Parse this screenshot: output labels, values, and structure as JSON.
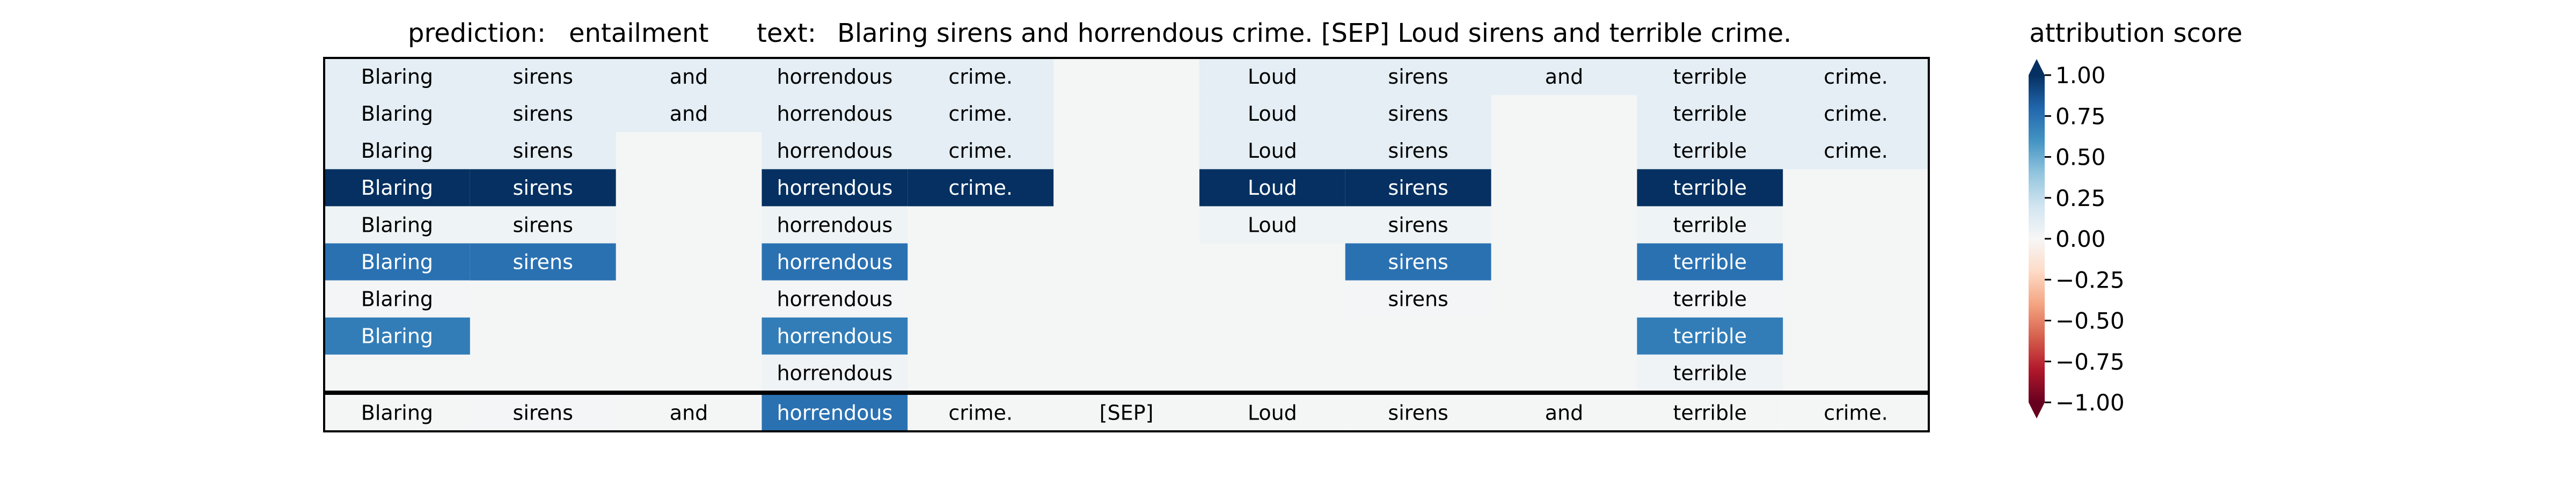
{
  "header": {
    "prediction_label": "prediction:",
    "prediction_value": "entailment",
    "text_label": "text:",
    "text_value": "Blaring sirens and horrendous crime. [SEP] Loud sirens and terrible crime.",
    "colorbar_title": "attribution score"
  },
  "colors": {
    "neutral": "#f4f6f6",
    "positive_max": "#053061",
    "negative_max": "#67001f",
    "frame": "#000000"
  },
  "chart_data": {
    "type": "heatmap",
    "title": "",
    "tokens": [
      "Blaring",
      "sirens",
      "and",
      "horrendous",
      "crime.",
      "[SEP]",
      "Loud",
      "sirens",
      "and",
      "terrible",
      "crime."
    ],
    "masked_rows": [
      [
        1,
        1,
        1,
        1,
        1,
        0,
        1,
        1,
        1,
        1,
        1
      ],
      [
        1,
        1,
        1,
        1,
        1,
        0,
        1,
        1,
        0,
        1,
        1
      ],
      [
        1,
        1,
        0,
        1,
        1,
        0,
        1,
        1,
        0,
        1,
        1
      ],
      [
        1,
        1,
        0,
        1,
        1,
        0,
        1,
        1,
        0,
        1,
        0
      ],
      [
        1,
        1,
        0,
        1,
        0,
        0,
        1,
        1,
        0,
        1,
        0
      ],
      [
        1,
        1,
        0,
        1,
        0,
        0,
        0,
        1,
        0,
        1,
        0
      ],
      [
        1,
        0,
        0,
        1,
        0,
        0,
        0,
        1,
        0,
        1,
        0
      ],
      [
        1,
        0,
        0,
        1,
        0,
        0,
        0,
        0,
        0,
        1,
        0
      ],
      [
        0,
        0,
        0,
        1,
        0,
        0,
        0,
        0,
        0,
        1,
        0
      ]
    ],
    "row_scores": [
      0.1,
      0.1,
      0.1,
      1.0,
      0.05,
      0.75,
      0.02,
      0.7,
      0.04
    ],
    "attribution_row": {
      "tokens": [
        "Blaring",
        "sirens",
        "and",
        "horrendous",
        "crime.",
        "[SEP]",
        "Loud",
        "sirens",
        "and",
        "terrible",
        "crime."
      ],
      "values": [
        0.0,
        0.02,
        0.0,
        0.75,
        0.0,
        0.0,
        0.0,
        0.0,
        0.0,
        0.0,
        0.0
      ]
    },
    "colorbar": {
      "label": "attribution score",
      "range": [
        -1.0,
        1.0
      ],
      "ticks": [
        "1.00",
        "0.75",
        "0.50",
        "0.25",
        "0.00",
        "−0.25",
        "−0.50",
        "−0.75",
        "−1.00"
      ],
      "tick_values": [
        1.0,
        0.75,
        0.5,
        0.25,
        0.0,
        -0.25,
        -0.5,
        -0.75,
        -1.0
      ],
      "colormap": "RdBu",
      "extend": "both"
    }
  }
}
